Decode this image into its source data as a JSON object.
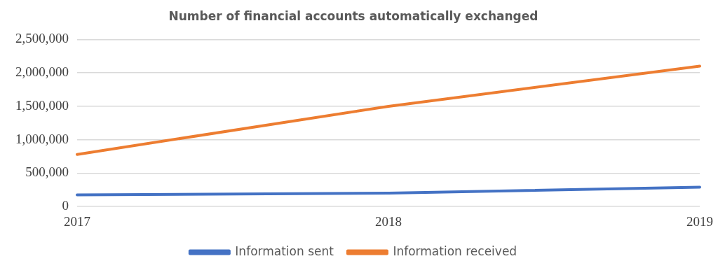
{
  "chart_data": {
    "type": "line",
    "title": "Number of financial accounts automatically exchanged",
    "categories": [
      "2017",
      "2018",
      "2019"
    ],
    "series": [
      {
        "name": "Information sent",
        "color": "#4472c4",
        "values": [
          175000,
          200000,
          290000
        ]
      },
      {
        "name": "Information received",
        "color": "#ed7d31",
        "values": [
          780000,
          1500000,
          2100000
        ]
      }
    ],
    "ylim": [
      0,
      2500000
    ],
    "yticks": [
      {
        "value": 0,
        "label": "0"
      },
      {
        "value": 500000,
        "label": "500,000"
      },
      {
        "value": 1000000,
        "label": "1,000,000"
      },
      {
        "value": 1500000,
        "label": "1,500,000"
      },
      {
        "value": 2000000,
        "label": "2,000,000"
      },
      {
        "value": 2500000,
        "label": "2,500,000"
      }
    ],
    "grid": "y",
    "legend": "bottom",
    "marker": "none",
    "line_style": "solid"
  }
}
